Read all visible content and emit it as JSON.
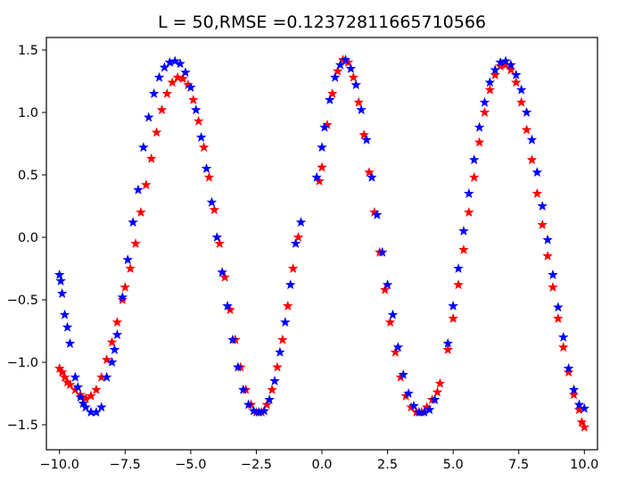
{
  "chart_data": {
    "type": "scatter",
    "title": "L = 50,RMSE =0.12372811665710566",
    "xlabel": "",
    "ylabel": "",
    "xlim": [
      -10.5,
      10.5
    ],
    "ylim": [
      -1.7,
      1.6
    ],
    "x_ticks": [
      -10.0,
      -7.5,
      -5.0,
      -2.5,
      0.0,
      2.5,
      5.0,
      7.5,
      10.0
    ],
    "x_tick_labels": [
      "−10.0",
      "−7.5",
      "−5.0",
      "−2.5",
      "0.0",
      "2.5",
      "5.0",
      "7.5",
      "10.0"
    ],
    "y_ticks": [
      -1.5,
      -1.0,
      -0.5,
      0.0,
      0.5,
      1.0,
      1.5
    ],
    "y_tick_labels": [
      "−1.5",
      "−1.0",
      "−0.5",
      "0.0",
      "0.5",
      "1.0",
      "1.5"
    ],
    "grid": false,
    "marker": "star",
    "series": [
      {
        "color": "#ff0000",
        "points": [
          [
            -10.0,
            -1.05
          ],
          [
            -9.9,
            -1.08
          ],
          [
            -9.8,
            -1.12
          ],
          [
            -9.7,
            -1.16
          ],
          [
            -9.6,
            -1.18
          ],
          [
            -9.4,
            -1.22
          ],
          [
            -9.2,
            -1.26
          ],
          [
            -9.0,
            -1.29
          ],
          [
            -8.8,
            -1.27
          ],
          [
            -8.6,
            -1.22
          ],
          [
            -8.4,
            -1.12
          ],
          [
            -8.2,
            -0.98
          ],
          [
            -8.0,
            -0.84
          ],
          [
            -7.8,
            -0.68
          ],
          [
            -7.6,
            -0.5
          ],
          [
            -7.5,
            -0.4
          ],
          [
            -7.3,
            -0.25
          ],
          [
            -7.1,
            -0.05
          ],
          [
            -6.9,
            0.2
          ],
          [
            -6.7,
            0.42
          ],
          [
            -6.5,
            0.63
          ],
          [
            -6.3,
            0.84
          ],
          [
            -6.1,
            1.02
          ],
          [
            -5.9,
            1.15
          ],
          [
            -5.7,
            1.24
          ],
          [
            -5.5,
            1.28
          ],
          [
            -5.3,
            1.27
          ],
          [
            -5.1,
            1.22
          ],
          [
            -4.9,
            1.1
          ],
          [
            -4.7,
            0.93
          ],
          [
            -4.5,
            0.72
          ],
          [
            -4.3,
            0.48
          ],
          [
            -4.1,
            0.22
          ],
          [
            -3.9,
            -0.05
          ],
          [
            -3.7,
            -0.32
          ],
          [
            -3.5,
            -0.58
          ],
          [
            -3.3,
            -0.82
          ],
          [
            -3.1,
            -1.04
          ],
          [
            -2.9,
            -1.22
          ],
          [
            -2.7,
            -1.34
          ],
          [
            -2.5,
            -1.4
          ],
          [
            -2.3,
            -1.4
          ],
          [
            -2.1,
            -1.34
          ],
          [
            -1.9,
            -1.22
          ],
          [
            -1.7,
            -1.04
          ],
          [
            -1.5,
            -0.82
          ],
          [
            -1.3,
            -0.55
          ],
          [
            -1.1,
            -0.25
          ],
          [
            -0.9,
            0.0
          ],
          [
            -0.1,
            0.45
          ],
          [
            0.0,
            0.56
          ],
          [
            0.2,
            0.9
          ],
          [
            0.4,
            1.15
          ],
          [
            0.6,
            1.33
          ],
          [
            0.8,
            1.42
          ],
          [
            1.0,
            1.4
          ],
          [
            1.2,
            1.28
          ],
          [
            1.4,
            1.08
          ],
          [
            1.6,
            0.82
          ],
          [
            1.8,
            0.52
          ],
          [
            2.0,
            0.2
          ],
          [
            2.2,
            -0.12
          ],
          [
            2.4,
            -0.42
          ],
          [
            2.6,
            -0.68
          ],
          [
            2.8,
            -0.92
          ],
          [
            3.0,
            -1.12
          ],
          [
            3.2,
            -1.27
          ],
          [
            3.4,
            -1.36
          ],
          [
            3.6,
            -1.4
          ],
          [
            3.8,
            -1.4
          ],
          [
            4.0,
            -1.36
          ],
          [
            4.2,
            -1.3
          ],
          [
            4.4,
            -1.24
          ],
          [
            4.5,
            -1.17
          ],
          [
            4.8,
            -0.9
          ],
          [
            5.0,
            -0.65
          ],
          [
            5.2,
            -0.38
          ],
          [
            5.4,
            -0.1
          ],
          [
            5.6,
            0.2
          ],
          [
            5.8,
            0.48
          ],
          [
            6.0,
            0.76
          ],
          [
            6.2,
            1.0
          ],
          [
            6.4,
            1.18
          ],
          [
            6.6,
            1.3
          ],
          [
            6.8,
            1.37
          ],
          [
            7.0,
            1.38
          ],
          [
            7.2,
            1.34
          ],
          [
            7.4,
            1.24
          ],
          [
            7.6,
            1.08
          ],
          [
            7.8,
            0.86
          ],
          [
            8.0,
            0.62
          ],
          [
            8.2,
            0.35
          ],
          [
            8.4,
            0.1
          ],
          [
            8.6,
            -0.15
          ],
          [
            8.8,
            -0.4
          ],
          [
            9.0,
            -0.65
          ],
          [
            9.2,
            -0.88
          ],
          [
            9.4,
            -1.08
          ],
          [
            9.6,
            -1.26
          ],
          [
            9.8,
            -1.38
          ],
          [
            9.9,
            -1.48
          ],
          [
            10.0,
            -1.52
          ]
        ]
      },
      {
        "color": "#0000ff",
        "points": [
          [
            -10.0,
            -0.3
          ],
          [
            -9.95,
            -0.35
          ],
          [
            -9.9,
            -0.45
          ],
          [
            -9.8,
            -0.62
          ],
          [
            -9.7,
            -0.72
          ],
          [
            -9.6,
            -0.85
          ],
          [
            -9.4,
            -1.12
          ],
          [
            -9.3,
            -1.2
          ],
          [
            -9.2,
            -1.28
          ],
          [
            -9.1,
            -1.33
          ],
          [
            -9.0,
            -1.36
          ],
          [
            -8.8,
            -1.4
          ],
          [
            -8.6,
            -1.4
          ],
          [
            -8.4,
            -1.36
          ],
          [
            -8.2,
            -1.12
          ],
          [
            -8.0,
            -1.0
          ],
          [
            -7.9,
            -0.9
          ],
          [
            -7.8,
            -0.78
          ],
          [
            -7.6,
            -0.48
          ],
          [
            -7.4,
            -0.18
          ],
          [
            -7.2,
            0.12
          ],
          [
            -7.0,
            0.38
          ],
          [
            -6.8,
            0.72
          ],
          [
            -6.6,
            0.96
          ],
          [
            -6.4,
            1.15
          ],
          [
            -6.2,
            1.28
          ],
          [
            -6.0,
            1.36
          ],
          [
            -5.8,
            1.4
          ],
          [
            -5.6,
            1.41
          ],
          [
            -5.4,
            1.39
          ],
          [
            -5.2,
            1.32
          ],
          [
            -5.0,
            1.2
          ],
          [
            -4.8,
            1.02
          ],
          [
            -4.6,
            0.8
          ],
          [
            -4.4,
            0.55
          ],
          [
            -4.2,
            0.28
          ],
          [
            -4.0,
            0.0
          ],
          [
            -3.8,
            -0.28
          ],
          [
            -3.6,
            -0.55
          ],
          [
            -3.4,
            -0.82
          ],
          [
            -3.2,
            -1.04
          ],
          [
            -3.0,
            -1.22
          ],
          [
            -2.8,
            -1.34
          ],
          [
            -2.6,
            -1.39
          ],
          [
            -2.4,
            -1.4
          ],
          [
            -2.2,
            -1.39
          ],
          [
            -2.0,
            -1.3
          ],
          [
            -1.8,
            -1.15
          ],
          [
            -1.6,
            -0.92
          ],
          [
            -1.4,
            -0.68
          ],
          [
            -1.2,
            -0.38
          ],
          [
            -1.0,
            -0.05
          ],
          [
            -0.8,
            0.12
          ],
          [
            -0.2,
            0.48
          ],
          [
            0.0,
            0.72
          ],
          [
            0.1,
            0.88
          ],
          [
            0.3,
            1.1
          ],
          [
            0.5,
            1.28
          ],
          [
            0.7,
            1.38
          ],
          [
            0.9,
            1.42
          ],
          [
            1.1,
            1.35
          ],
          [
            1.3,
            1.22
          ],
          [
            1.5,
            1.02
          ],
          [
            1.7,
            0.78
          ],
          [
            1.9,
            0.48
          ],
          [
            2.1,
            0.18
          ],
          [
            2.3,
            -0.12
          ],
          [
            2.5,
            -0.38
          ],
          [
            2.7,
            -0.62
          ],
          [
            2.9,
            -0.88
          ],
          [
            3.1,
            -1.1
          ],
          [
            3.3,
            -1.25
          ],
          [
            3.5,
            -1.35
          ],
          [
            3.7,
            -1.4
          ],
          [
            3.9,
            -1.4
          ],
          [
            4.1,
            -1.38
          ],
          [
            4.3,
            -1.3
          ],
          [
            4.8,
            -0.85
          ],
          [
            5.0,
            -0.55
          ],
          [
            5.2,
            -0.25
          ],
          [
            5.4,
            0.05
          ],
          [
            5.6,
            0.35
          ],
          [
            5.8,
            0.62
          ],
          [
            6.0,
            0.88
          ],
          [
            6.2,
            1.08
          ],
          [
            6.4,
            1.24
          ],
          [
            6.6,
            1.34
          ],
          [
            6.8,
            1.4
          ],
          [
            7.0,
            1.41
          ],
          [
            7.2,
            1.38
          ],
          [
            7.4,
            1.3
          ],
          [
            7.6,
            1.18
          ],
          [
            7.8,
            1.0
          ],
          [
            8.0,
            0.78
          ],
          [
            8.2,
            0.52
          ],
          [
            8.4,
            0.25
          ],
          [
            8.6,
            -0.02
          ],
          [
            8.8,
            -0.3
          ],
          [
            9.0,
            -0.56
          ],
          [
            9.2,
            -0.8
          ],
          [
            9.4,
            -1.05
          ],
          [
            9.6,
            -1.22
          ],
          [
            9.8,
            -1.34
          ],
          [
            10.0,
            -1.37
          ]
        ]
      }
    ]
  }
}
